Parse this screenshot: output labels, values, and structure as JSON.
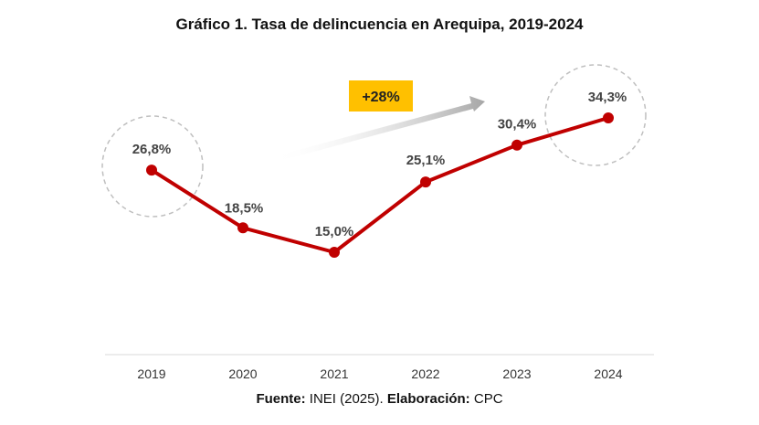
{
  "chart_data": {
    "type": "line",
    "title": "Gráfico 1. Tasa de delincuencia en Arequipa, 2019-2024",
    "categories": [
      "2019",
      "2020",
      "2021",
      "2022",
      "2023",
      "2024"
    ],
    "series": [
      {
        "name": "Tasa de delincuencia",
        "values": [
          26.8,
          18.5,
          15.0,
          25.1,
          30.4,
          34.3
        ],
        "labels": [
          "26,8%",
          "18,5%",
          "15,0%",
          "25,1%",
          "30,4%",
          "34,3%"
        ],
        "color": "#c00000"
      }
    ],
    "annotation": {
      "text": "+28%",
      "color": "#ffc000"
    },
    "highlight_color": "#bfbfbf",
    "xlabel": "",
    "ylabel": "",
    "ylim": [
      0,
      40
    ]
  },
  "source": {
    "source_label": "Fuente:",
    "source_value": " INEI (2025). ",
    "elab_label": "Elaboración:",
    "elab_value": " CPC"
  }
}
